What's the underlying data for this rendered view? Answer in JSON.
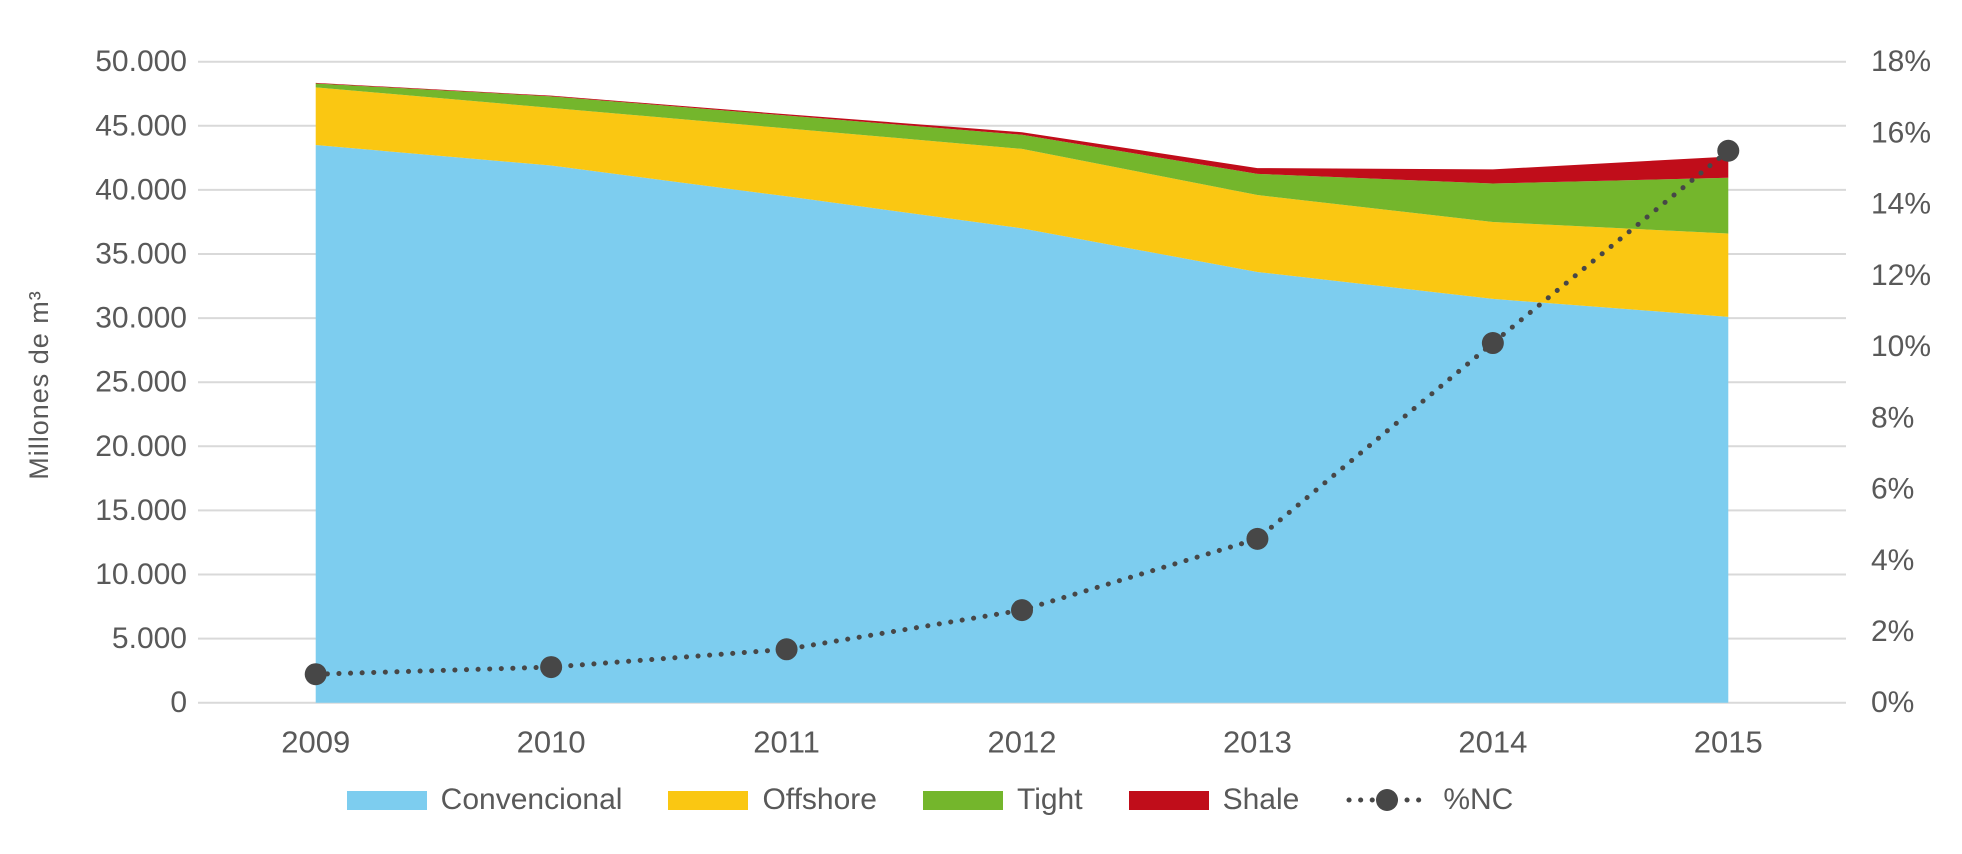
{
  "chart_data": {
    "type": "area",
    "subtype": "stacked-area-with-line",
    "title": "",
    "categories": [
      "2009",
      "2010",
      "2011",
      "2012",
      "2013",
      "2014",
      "2015"
    ],
    "series": [
      {
        "name": "Convencional",
        "color": "#7DCDEF",
        "values": [
          43500,
          41900,
          39500,
          37000,
          33600,
          31500,
          30100
        ]
      },
      {
        "name": "Offshore",
        "color": "#FAC712",
        "values": [
          4500,
          4500,
          5300,
          6200,
          6000,
          6000,
          6500
        ]
      },
      {
        "name": "Tight",
        "color": "#74B62C",
        "values": [
          300,
          900,
          1000,
          1100,
          1650,
          3000,
          4350
        ]
      },
      {
        "name": "Shale",
        "color": "#C00D1A",
        "values": [
          50,
          50,
          100,
          200,
          450,
          1100,
          1650
        ]
      }
    ],
    "line_series": {
      "name": "%NC",
      "color": "#474747",
      "axis": "right",
      "style": "dotted-with-markers",
      "values": [
        0.8,
        1.0,
        1.5,
        2.6,
        4.6,
        10.1,
        15.5
      ]
    },
    "left_axis": {
      "label": "Millones de m³",
      "min": 0,
      "max": 50000,
      "step": 5000,
      "tick_labels": [
        "0",
        "5.000",
        "10.000",
        "15.000",
        "20.000",
        "25.000",
        "30.000",
        "35.000",
        "40.000",
        "45.000",
        "50.000"
      ]
    },
    "right_axis": {
      "min": 0,
      "max": 18,
      "step": 2,
      "tick_labels": [
        "0%",
        "2%",
        "4%",
        "6%",
        "8%",
        "10%",
        "12%",
        "14%",
        "16%",
        "18%"
      ]
    },
    "legend": [
      "Convencional",
      "Offshore",
      "Tight",
      "Shale",
      "%NC"
    ],
    "grid": "horizontal",
    "legend_position": "bottom",
    "colors": {
      "text": "#595959",
      "gridline": "#D9D9D9",
      "background": "#FFFFFF"
    }
  }
}
